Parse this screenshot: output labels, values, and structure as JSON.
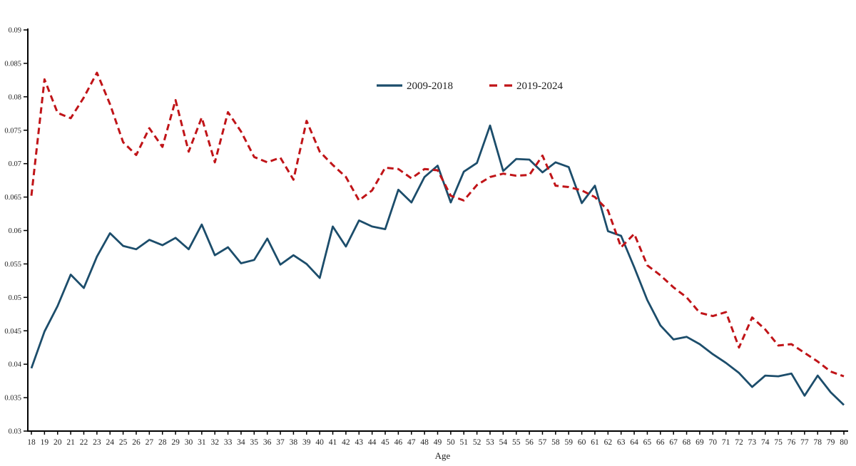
{
  "chart_data": {
    "type": "line",
    "title": "",
    "xlabel": "Age",
    "ylabel": "",
    "x": [
      18,
      19,
      20,
      21,
      22,
      23,
      24,
      25,
      26,
      27,
      28,
      29,
      30,
      31,
      32,
      33,
      34,
      35,
      36,
      37,
      38,
      39,
      40,
      41,
      42,
      43,
      44,
      45,
      46,
      47,
      48,
      49,
      50,
      51,
      52,
      53,
      54,
      55,
      56,
      57,
      58,
      59,
      60,
      61,
      62,
      63,
      64,
      65,
      66,
      67,
      68,
      69,
      70,
      71,
      72,
      73,
      74,
      75,
      76,
      77,
      78,
      79,
      80
    ],
    "xlim": [
      18,
      80
    ],
    "ylim": [
      0.03,
      0.09
    ],
    "ytick_step": 0.005,
    "ytick_labels": [
      "0.03",
      "0.035",
      "0.04",
      "0.045",
      "0.05",
      "0.055",
      "0.06",
      "0.065",
      "0.07",
      "0.075",
      "0.08",
      "0.085",
      "0.09"
    ],
    "grid": false,
    "legend_position": "top-center-inside",
    "series": [
      {
        "name": "2009-2018",
        "style": "solid",
        "color": "#1c4d6b",
        "values": [
          0.0394,
          0.0449,
          0.0487,
          0.0534,
          0.0514,
          0.0561,
          0.0596,
          0.0577,
          0.0572,
          0.0586,
          0.0578,
          0.0589,
          0.0572,
          0.0609,
          0.0563,
          0.0575,
          0.0551,
          0.0556,
          0.0588,
          0.0549,
          0.0563,
          0.055,
          0.0529,
          0.0606,
          0.0576,
          0.0615,
          0.0606,
          0.0602,
          0.0661,
          0.0642,
          0.068,
          0.0697,
          0.0642,
          0.0688,
          0.0701,
          0.0757,
          0.0689,
          0.0707,
          0.0706,
          0.0687,
          0.0702,
          0.0695,
          0.0641,
          0.0667,
          0.0599,
          0.0592,
          0.0545,
          0.0496,
          0.0458,
          0.0437,
          0.0441,
          0.043,
          0.0415,
          0.0402,
          0.0387,
          0.0366,
          0.0383,
          0.0382,
          0.0386,
          0.0353,
          0.0383,
          0.0358,
          0.0339
        ]
      },
      {
        "name": "2019-2024",
        "style": "dashed",
        "color": "#c01418",
        "values": [
          0.0652,
          0.0826,
          0.0776,
          0.0768,
          0.0799,
          0.0836,
          0.0789,
          0.0732,
          0.0713,
          0.0753,
          0.0725,
          0.0795,
          0.0718,
          0.0769,
          0.0702,
          0.0777,
          0.0748,
          0.071,
          0.0702,
          0.0709,
          0.0676,
          0.0764,
          0.0718,
          0.0698,
          0.068,
          0.0645,
          0.066,
          0.0694,
          0.0692,
          0.0678,
          0.0692,
          0.069,
          0.0652,
          0.0645,
          0.0668,
          0.068,
          0.0685,
          0.0682,
          0.0683,
          0.0712,
          0.0667,
          0.0665,
          0.066,
          0.065,
          0.063,
          0.0575,
          0.0595,
          0.0548,
          0.0533,
          0.0515,
          0.05,
          0.0477,
          0.0472,
          0.0478,
          0.0425,
          0.047,
          0.0452,
          0.0428,
          0.043,
          0.0417,
          0.0404,
          0.0389,
          0.0382
        ]
      }
    ]
  },
  "colors": {
    "axis": "#000000",
    "background": "#ffffff",
    "text": "#1f1f1f"
  }
}
